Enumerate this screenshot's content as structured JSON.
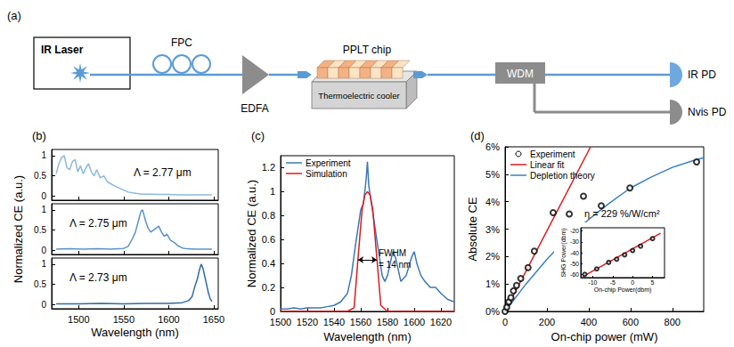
{
  "diagram": {
    "panel_label": "(a)",
    "laser": "IR Laser",
    "fiber_controller": "FPC",
    "amplifier": "EDFA",
    "chip": "PPLT chip",
    "cooler": "Thermoelectric cooler",
    "wdm": "WDM",
    "detectors": [
      "IR PD",
      "Nvis PD"
    ]
  },
  "chart_data": [
    {
      "panel_label": "(b)",
      "type": "line",
      "xlabel": "Wavelength (nm)",
      "ylabel": "Normalized CE (a.u.)",
      "xlim": [
        1470,
        1655
      ],
      "xticks": [
        1500,
        1550,
        1600,
        1650
      ],
      "ylim": [
        -0.1,
        1.15
      ],
      "yticks": [
        0,
        0.5,
        1
      ],
      "grid": false,
      "subplots": [
        {
          "annotation": "Λ = 2.77 μm",
          "color": "#8db9dd",
          "x": [
            1475,
            1478,
            1481,
            1484,
            1487,
            1490,
            1493,
            1496,
            1499,
            1502,
            1505,
            1508,
            1511,
            1514,
            1517,
            1520,
            1524,
            1528,
            1532,
            1536,
            1540,
            1545,
            1550,
            1555,
            1560,
            1570,
            1580,
            1590,
            1600,
            1610,
            1620,
            1630,
            1640,
            1648
          ],
          "values": [
            0.55,
            0.8,
            0.95,
            1.0,
            0.7,
            0.65,
            0.85,
            0.9,
            0.6,
            0.75,
            0.55,
            0.7,
            0.8,
            0.6,
            0.5,
            0.65,
            0.45,
            0.5,
            0.35,
            0.3,
            0.25,
            0.2,
            0.15,
            0.1,
            0.08,
            0.05,
            0.05,
            0.04,
            0.04,
            0.03,
            0.03,
            0.03,
            0.03,
            0.03
          ]
        },
        {
          "annotation": "Λ = 2.75 μm",
          "color": "#5b93c9",
          "x": [
            1475,
            1490,
            1505,
            1520,
            1535,
            1550,
            1555,
            1560,
            1563,
            1566,
            1569,
            1571,
            1574,
            1577,
            1580,
            1583,
            1586,
            1589,
            1592,
            1595,
            1598,
            1602,
            1606,
            1610,
            1615,
            1620,
            1630,
            1640,
            1648
          ],
          "values": [
            0.03,
            0.04,
            0.03,
            0.04,
            0.03,
            0.05,
            0.1,
            0.3,
            0.45,
            0.7,
            0.95,
            1.0,
            0.75,
            0.55,
            0.45,
            0.5,
            0.55,
            0.6,
            0.45,
            0.35,
            0.4,
            0.25,
            0.2,
            0.12,
            0.06,
            0.04,
            0.03,
            0.03,
            0.03
          ]
        },
        {
          "annotation": "Λ = 2.73 μm",
          "color": "#2f6aa8",
          "x": [
            1475,
            1500,
            1525,
            1550,
            1575,
            1600,
            1615,
            1622,
            1626,
            1629,
            1632,
            1634,
            1636,
            1638,
            1640,
            1642,
            1644,
            1646,
            1648
          ],
          "values": [
            0.02,
            0.02,
            0.03,
            0.02,
            0.03,
            0.03,
            0.05,
            0.1,
            0.2,
            0.45,
            0.65,
            0.85,
            1.0,
            0.9,
            0.7,
            0.5,
            0.3,
            0.15,
            0.08
          ]
        }
      ]
    },
    {
      "panel_label": "(c)",
      "type": "line",
      "xlabel": "Wavelength (nm)",
      "ylabel": "Normalized CE (a.u.)",
      "xlim": [
        1500,
        1630
      ],
      "xticks": [
        1500,
        1520,
        1540,
        1560,
        1580,
        1600,
        1620
      ],
      "ylim": [
        0,
        1.3
      ],
      "yticks": [
        0,
        0.2,
        0.4,
        0.6,
        0.8,
        1,
        1.2
      ],
      "grid": false,
      "legend": "upper left",
      "series": [
        {
          "name": "Experiment",
          "color": "#3b78b8",
          "x": [
            1500,
            1505,
            1510,
            1515,
            1520,
            1525,
            1530,
            1535,
            1540,
            1545,
            1550,
            1553,
            1556,
            1558,
            1560,
            1562,
            1564,
            1565,
            1566,
            1568,
            1570,
            1572,
            1574,
            1576,
            1578,
            1580,
            1582,
            1584,
            1586,
            1588,
            1590,
            1594,
            1598,
            1600,
            1602,
            1605,
            1608,
            1612,
            1616,
            1620,
            1625,
            1630
          ],
          "values": [
            0.02,
            0.02,
            0.03,
            0.02,
            0.03,
            0.03,
            0.03,
            0.04,
            0.05,
            0.08,
            0.15,
            0.3,
            0.55,
            0.7,
            0.85,
            0.9,
            1.1,
            1.25,
            1.05,
            0.9,
            0.75,
            0.6,
            0.45,
            0.3,
            0.25,
            0.3,
            0.4,
            0.5,
            0.45,
            0.35,
            0.25,
            0.3,
            0.45,
            0.5,
            0.4,
            0.3,
            0.25,
            0.2,
            0.2,
            0.15,
            0.1,
            0.08
          ]
        },
        {
          "name": "Simulation",
          "color": "#e3191c",
          "x": [
            1500,
            1520,
            1540,
            1550,
            1555,
            1558,
            1561,
            1563,
            1565,
            1567,
            1569,
            1572,
            1575,
            1580,
            1590,
            1610,
            1630
          ],
          "values": [
            0,
            0,
            0,
            0,
            0.03,
            0.45,
            0.85,
            0.97,
            1.0,
            0.97,
            0.85,
            0.45,
            0.05,
            0,
            0,
            0,
            0
          ]
        }
      ],
      "fwhm": {
        "label": [
          "FWHM",
          "= 14 nm"
        ],
        "x": [
          1558,
          1572
        ],
        "y": 0.43
      }
    },
    {
      "panel_label": "(d)",
      "type": "scatter",
      "xlabel": "On-chip power (mW)",
      "ylabel": "Absolute CE",
      "xlim": [
        0,
        950
      ],
      "xticks": [
        0,
        200,
        400,
        600,
        800
      ],
      "ylim": [
        0,
        6
      ],
      "yticks": [
        {
          "value": 0,
          "label": "0%"
        },
        {
          "value": 1,
          "label": "1%"
        },
        {
          "value": 2,
          "label": "2%"
        },
        {
          "value": 3,
          "label": "3%"
        },
        {
          "value": 4,
          "label": "4%"
        },
        {
          "value": 5,
          "label": "5%"
        },
        {
          "value": 6,
          "label": "6%"
        }
      ],
      "grid": false,
      "legend": "upper left",
      "annotation": "η = 229 %/W/cm²",
      "series": [
        {
          "name": "Experiment",
          "type": "scatter",
          "marker": "open_circle",
          "color": "#000000",
          "x": [
            0,
            8,
            18,
            28,
            40,
            55,
            75,
            110,
            140,
            230,
            307,
            375,
            460,
            597,
            916
          ],
          "values": [
            0,
            0.15,
            0.35,
            0.5,
            0.75,
            0.95,
            1.2,
            1.6,
            2.2,
            3.6,
            3.55,
            4.2,
            3.85,
            4.5,
            5.45
          ]
        },
        {
          "name": "Linear fit",
          "type": "line",
          "color": "#e3191c",
          "x": [
            0,
            409
          ],
          "values": [
            0,
            6
          ]
        },
        {
          "name": "Depletion theory",
          "type": "line",
          "color": "#3b7fc4",
          "x": [
            0,
            100,
            200,
            300,
            400,
            500,
            600,
            700,
            800,
            900,
            950
          ],
          "values": [
            0,
            1.0,
            1.9,
            2.7,
            3.35,
            3.95,
            4.5,
            4.9,
            5.25,
            5.5,
            5.6
          ]
        }
      ],
      "inset": {
        "type": "scatter",
        "xlabel": "On-chip Power(dbm)",
        "ylabel": "SHG Power(dbm)",
        "xlim": [
          -13,
          8
        ],
        "xticks": [
          -10,
          -5,
          0,
          5
        ],
        "ylim": [
          -63,
          -17
        ],
        "yticks": [
          -60,
          -50,
          -40,
          -30,
          -20
        ],
        "series": [
          {
            "type": "scatter",
            "marker": "open_circle",
            "color": "#000000",
            "x": [
              -12,
              -9,
              -6,
              -4,
              -2,
              0,
              2,
              5
            ],
            "values": [
              -60,
              -55,
              -49,
              -46,
              -42,
              -38,
              -34,
              -27
            ]
          },
          {
            "type": "line",
            "color": "#e3191c",
            "x": [
              -12.5,
              7
            ],
            "values": [
              -62,
              -22
            ]
          }
        ]
      }
    }
  ]
}
